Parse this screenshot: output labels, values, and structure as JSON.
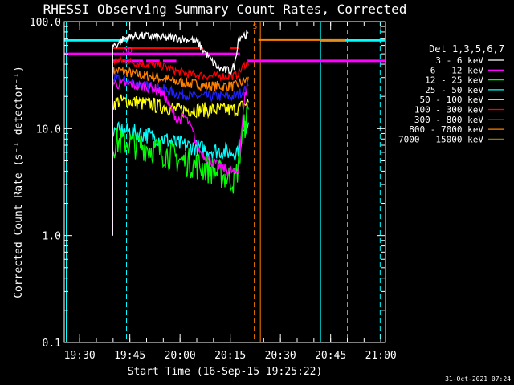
{
  "chart_data": {
    "type": "line",
    "title": "RHESSI Observing Summary Count Rates, Corrected",
    "xlabel": "Start Time (16-Sep-15 19:25:22)",
    "ylabel": "Corrected Count Rate (s⁻¹ detector⁻¹)",
    "x_unit": "minutes since 19:25:22 (time of day UT)",
    "xlim": [
      0,
      96
    ],
    "ylim": [
      0.1,
      100
    ],
    "y_scale": "log",
    "x_ticks": [
      {
        "t": 4.6,
        "label": "19:30"
      },
      {
        "t": 19.6,
        "label": "19:45"
      },
      {
        "t": 34.6,
        "label": "20:00"
      },
      {
        "t": 49.6,
        "label": "20:15"
      },
      {
        "t": 64.6,
        "label": "20:30"
      },
      {
        "t": 79.6,
        "label": "20:45"
      },
      {
        "t": 94.6,
        "label": "21:00"
      }
    ],
    "y_ticks": [
      {
        "v": 100,
        "label": "100.0"
      },
      {
        "v": 10,
        "label": "10.0"
      },
      {
        "v": 1,
        "label": "1.0"
      },
      {
        "v": 0.1,
        "label": "0.1"
      }
    ],
    "legend_title": "Det 1,3,5,6,7",
    "legend_position": "right",
    "series": [
      {
        "name": "3 - 6 keV",
        "color": "#ffffff",
        "x": [
          14.5,
          16,
          18,
          20,
          22,
          24,
          26,
          28,
          30,
          32,
          34,
          36,
          38,
          40,
          42,
          44,
          46,
          48,
          50,
          51,
          52,
          53,
          54,
          55
        ],
        "y": [
          60,
          62,
          70,
          72,
          74,
          73,
          73,
          71,
          70,
          71,
          70,
          69,
          68,
          63,
          52,
          43,
          37,
          35,
          35,
          40,
          70,
          74,
          75,
          75
        ]
      },
      {
        "name": "6 - 12 keV",
        "color": "#ff00ff",
        "x": [
          14.5,
          16,
          18,
          20,
          22,
          24,
          26,
          28,
          30,
          32,
          34,
          36,
          38,
          40,
          42,
          44,
          46,
          48,
          50,
          51,
          52,
          53,
          54,
          55
        ],
        "y": [
          27,
          26,
          26,
          26,
          25,
          25,
          24,
          23,
          20,
          15,
          12,
          13,
          10,
          6.5,
          5.5,
          5,
          4.5,
          4.2,
          4,
          3.8,
          4,
          10,
          20,
          30
        ]
      },
      {
        "name": "12 - 25 keV",
        "color": "#00ff00",
        "x": [
          14.5,
          16,
          18,
          20,
          22,
          24,
          26,
          28,
          30,
          32,
          34,
          36,
          38,
          40,
          42,
          44,
          46,
          48,
          50,
          51,
          52,
          53,
          54,
          55
        ],
        "y": [
          7,
          7.5,
          7.5,
          7.3,
          7,
          6.8,
          6.5,
          6.2,
          5.9,
          5.6,
          5.2,
          4.9,
          4.7,
          4.5,
          4.3,
          4.1,
          3.8,
          3.6,
          3.4,
          3.2,
          4.5,
          8,
          11,
          14
        ]
      },
      {
        "name": "25 - 50 keV",
        "color": "#00ffff",
        "x": [
          14.5,
          16,
          18,
          20,
          22,
          24,
          26,
          28,
          30,
          32,
          34,
          36,
          38,
          40,
          42,
          44,
          46,
          48,
          50,
          51,
          52,
          53,
          54,
          55
        ],
        "y": [
          9,
          9.5,
          9.5,
          9.3,
          9,
          8.8,
          8.5,
          8.2,
          8,
          7.6,
          7.2,
          7,
          6.8,
          6.6,
          6.4,
          6.3,
          6.2,
          6.1,
          6,
          6,
          6.5,
          8,
          10,
          12
        ]
      },
      {
        "name": "50 - 100 keV",
        "color": "#ffff00",
        "x": [
          14.5,
          16,
          18,
          20,
          22,
          24,
          26,
          28,
          30,
          32,
          34,
          36,
          38,
          40,
          42,
          44,
          46,
          48,
          50,
          51,
          52,
          53,
          54,
          55
        ],
        "y": [
          17,
          18,
          18,
          18,
          17.5,
          17,
          17,
          16,
          16,
          15.5,
          15,
          15,
          15,
          15,
          15,
          15,
          15,
          15,
          15,
          15,
          15.5,
          16,
          17,
          17.5
        ]
      },
      {
        "name": "100 - 300 keV",
        "color": "#ff0000",
        "x": [
          14.5,
          16,
          18,
          20,
          22,
          24,
          26,
          28,
          30,
          32,
          34,
          36,
          38,
          40,
          42,
          44,
          46,
          48,
          50,
          51,
          52,
          53,
          54,
          55
        ],
        "y": [
          42,
          44,
          43,
          42,
          41,
          40,
          40,
          39,
          38,
          36,
          34,
          33,
          32,
          32,
          31,
          31,
          31,
          31,
          31,
          31,
          33,
          36,
          40,
          42
        ]
      },
      {
        "name": "300 - 800 keV",
        "color": "#2020ff",
        "x": [
          14.5,
          16,
          18,
          20,
          22,
          24,
          26,
          28,
          30,
          32,
          34,
          36,
          38,
          40,
          42,
          44,
          46,
          48,
          50,
          51,
          52,
          53,
          54,
          55
        ],
        "y": [
          30,
          29,
          28,
          27,
          26,
          25,
          25,
          24,
          23,
          22,
          21,
          21,
          20,
          20,
          20,
          20,
          20,
          20,
          20,
          20,
          21,
          22,
          23,
          24
        ]
      },
      {
        "name": "800 - 7000 keV",
        "color": "#ff8000",
        "x": [
          14.5,
          16,
          18,
          20,
          22,
          24,
          26,
          28,
          30,
          32,
          34,
          36,
          38,
          40,
          42,
          44,
          46,
          48,
          50,
          51,
          52,
          53,
          54,
          55
        ],
        "y": [
          34,
          35,
          34,
          33,
          32,
          31,
          31,
          30,
          29,
          28,
          27,
          27,
          26,
          26,
          25,
          25,
          25,
          25,
          25,
          25,
          26,
          27,
          28,
          29
        ]
      },
      {
        "name": "7000 - 15000 keV",
        "color": "#808000",
        "x": [
          14.5,
          14.5,
          55
        ],
        "y": [
          3.0,
          1.0,
          1.0
        ]
      }
    ],
    "flags": [
      {
        "color": "#ff0000",
        "level": 57,
        "segments": [
          [
            14.5,
            41.5
          ],
          [
            49.5,
            52.2
          ]
        ]
      },
      {
        "color": "#ff00ff",
        "level": 50,
        "segments": [
          [
            0,
            52.5
          ]
        ],
        "label": "AO"
      },
      {
        "color": "#ff00ff",
        "level": 43,
        "segments": [
          [
            14.5,
            16.5
          ],
          [
            17.5,
            23.5
          ],
          [
            24.5,
            28.5
          ],
          [
            29.5,
            33.5
          ],
          [
            54.5,
            96
          ]
        ]
      },
      {
        "color": "#00ffff",
        "level": 67,
        "segments": [
          [
            0,
            18.5
          ],
          [
            76.5,
            96
          ]
        ]
      },
      {
        "color": "#ff8000",
        "level": 68,
        "segments": [
          [
            58.0,
            84.0
          ]
        ]
      }
    ],
    "vertical_lines": [
      {
        "t": 0.6,
        "color": "#00ffff",
        "dashed": false
      },
      {
        "t": 18.6,
        "color": "#00ffff",
        "dashed": true
      },
      {
        "t": 56.8,
        "color": "#ff8000",
        "dashed": true
      },
      {
        "t": 58.6,
        "color": "#ff8000",
        "dashed": false
      },
      {
        "t": 76.6,
        "color": "#00ffff",
        "dashed": false
      },
      {
        "t": 84.6,
        "color": "#ff8000",
        "dashed": true
      },
      {
        "t": 94.4,
        "color": "#00ffff",
        "dashed": true
      }
    ],
    "markers": [
      {
        "text": "S",
        "t": 57.0,
        "level": 92,
        "color": "#ff8000"
      }
    ],
    "footer": "31-Oct-2021 07:24"
  }
}
